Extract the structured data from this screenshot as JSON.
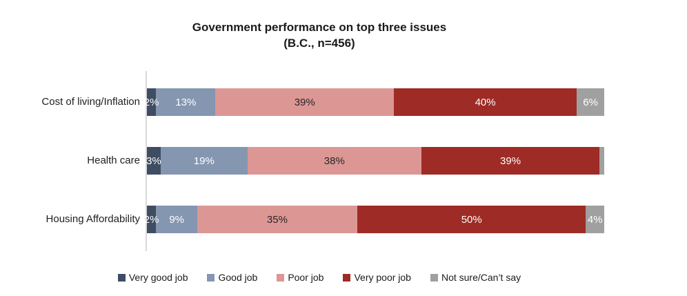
{
  "title": {
    "line1": "Government performance on top three issues",
    "line2": "(B.C., n=456)"
  },
  "colors": {
    "very_good_job": "#3F4D63",
    "good_job": "#8496B0",
    "poor_job": "#DC9795",
    "very_poor_job": "#9E2B25",
    "not_sure": "#A0A0A0",
    "axis_line": "#D9D9D9",
    "label_dark": "#262626",
    "label_light": "#FFFFFF"
  },
  "chart_data": {
    "type": "bar",
    "orientation": "horizontal-stacked",
    "title": "Government performance on top three issues (B.C., n=456)",
    "categories": [
      "Cost of living/Inflation",
      "Health care",
      "Housing Affordability"
    ],
    "series": [
      {
        "name": "Very good job",
        "color": "#3F4D63",
        "label_color": "#FFFFFF",
        "values": [
          2,
          3,
          2
        ]
      },
      {
        "name": "Good job",
        "color": "#8496B0",
        "label_color": "#FFFFFF",
        "values": [
          13,
          19,
          9
        ]
      },
      {
        "name": "Poor job",
        "color": "#DC9795",
        "label_color": "#262626",
        "values": [
          39,
          38,
          35
        ]
      },
      {
        "name": "Very poor job",
        "color": "#9E2B25",
        "label_color": "#FFFFFF",
        "values": [
          40,
          39,
          50
        ]
      },
      {
        "name": "Not sure/Can’t say",
        "color": "#A0A0A0",
        "label_color": "#FFFFFF",
        "values": [
          6,
          1,
          4
        ]
      }
    ],
    "data_labels": [
      [
        "2%",
        "13%",
        "39%",
        "40%",
        "6%"
      ],
      [
        "3%",
        "19%",
        "38%",
        "39%",
        ""
      ],
      [
        "2%",
        "9%",
        "35%",
        "50%",
        "4%"
      ]
    ],
    "xlim": [
      0,
      100
    ],
    "grid": false,
    "legend_position": "bottom"
  },
  "legend": {
    "items": [
      {
        "label": "Very good job",
        "color": "#3F4D63"
      },
      {
        "label": "Good job",
        "color": "#8496B0"
      },
      {
        "label": "Poor job",
        "color": "#DC9795"
      },
      {
        "label": "Very poor job",
        "color": "#9E2B25"
      },
      {
        "label": "Not sure/Can’t say",
        "color": "#A0A0A0"
      }
    ]
  },
  "layout_values": {
    "row_tops": [
      128,
      213,
      298
    ]
  }
}
